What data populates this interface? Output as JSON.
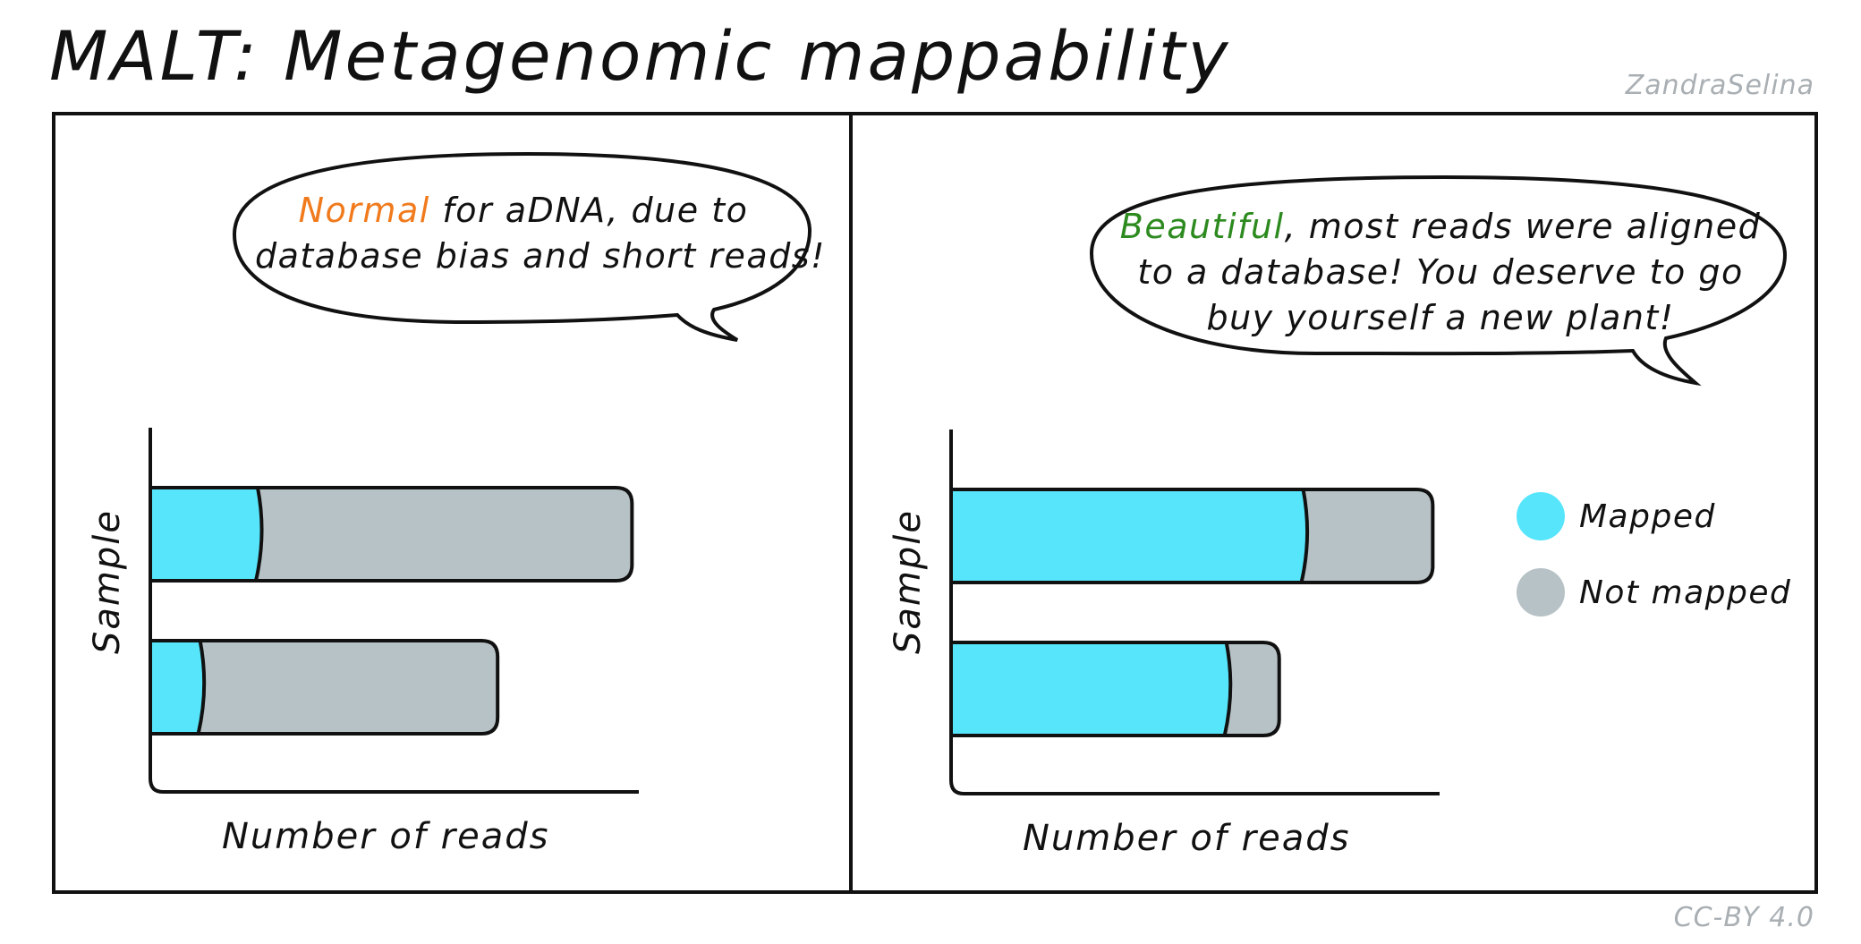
{
  "title": "MALT: Metagenomic mappability",
  "author": "ZandraSelina",
  "license": "CC-BY 4.0",
  "colors": {
    "mapped": "#57e5fb",
    "not_mapped": "#b7c2c6",
    "highlight_normal": "#f07a1c",
    "highlight_beautiful": "#2c8a1e"
  },
  "panels": [
    {
      "bubble": {
        "highlight": "Normal",
        "line1_rest": " for aDNA, due to",
        "line2": "database bias and short reads!"
      },
      "xlabel": "Number of reads",
      "ylabel": "Sample"
    },
    {
      "bubble": {
        "highlight": "Beautiful",
        "line1_rest": ", most reads were aligned",
        "line2": "to a database! You deserve to go",
        "line3": "buy yourself a new plant!"
      },
      "xlabel": "Number of reads",
      "ylabel": "Sample",
      "legend": [
        {
          "label": "Mapped",
          "color": "#57e5fb"
        },
        {
          "label": "Not mapped",
          "color": "#b7c2c6"
        }
      ]
    }
  ],
  "chart_data": [
    {
      "type": "bar",
      "orientation": "horizontal",
      "stacked": true,
      "xlabel": "Number of reads",
      "ylabel": "Sample",
      "categories": [
        "",
        ""
      ],
      "series": [
        {
          "name": "Mapped",
          "values": [
            0.22,
            0.1
          ]
        },
        {
          "name": "Not mapped",
          "values": [
            0.78,
            0.62
          ]
        }
      ],
      "xlim": [
        0,
        1.1
      ],
      "grid": false
    },
    {
      "type": "bar",
      "orientation": "horizontal",
      "stacked": true,
      "xlabel": "Number of reads",
      "ylabel": "Sample",
      "categories": [
        "",
        ""
      ],
      "series": [
        {
          "name": "Mapped",
          "values": [
            0.73,
            0.57
          ]
        },
        {
          "name": "Not mapped",
          "values": [
            0.27,
            0.11
          ]
        }
      ],
      "xlim": [
        0,
        1.1
      ],
      "grid": false,
      "legend": "right"
    }
  ]
}
